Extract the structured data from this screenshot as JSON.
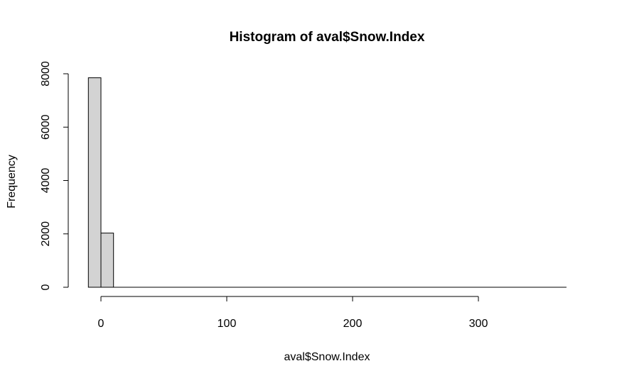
{
  "chart_data": {
    "type": "bar",
    "title": "Histogram of aval$Snow.Index",
    "xlabel": "aval$Snow.Index",
    "ylabel": "Frequency",
    "xlim": [
      -10,
      370
    ],
    "ylim": [
      0,
      8000
    ],
    "x_ticks": [
      0,
      100,
      200,
      300
    ],
    "y_ticks": [
      0,
      2000,
      4000,
      6000,
      8000
    ],
    "bins": [
      {
        "from": -10,
        "to": 0,
        "count": 7850
      },
      {
        "from": 0,
        "to": 10,
        "count": 2030
      },
      {
        "from": 10,
        "to": 20,
        "count": 0
      }
    ],
    "bar_color": "#d3d3d3",
    "grid": false,
    "legend": "none"
  }
}
